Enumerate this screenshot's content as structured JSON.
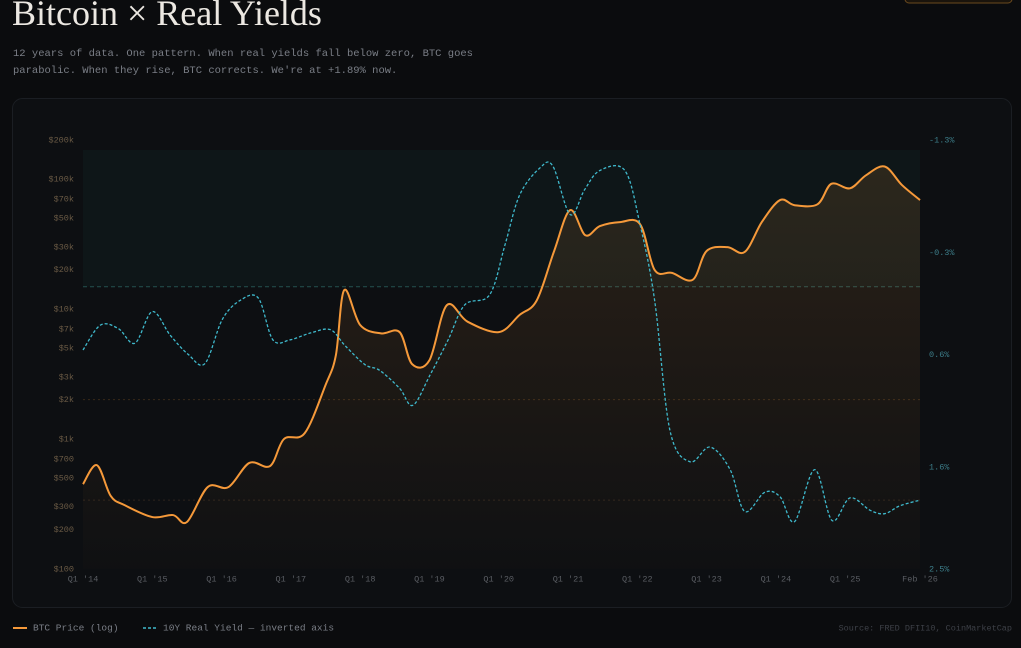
{
  "chart_data": {
    "type": "line",
    "title": "Bitcoin × Real Yields",
    "subtitle": "12 years of data. One pattern. When real yields fall below zero, BTC goes parabolic. When they rise, BTC corrects. We're at +1.89% now.",
    "source": "Source: FRED DFII10, CoinMarketCap",
    "xlim": [
      2014,
      2026.08
    ],
    "xticks": [
      {
        "value": 2014,
        "label": "Q1 '14"
      },
      {
        "value": 2015,
        "label": "Q1 '15"
      },
      {
        "value": 2016,
        "label": "Q1 '16"
      },
      {
        "value": 2017,
        "label": "Q1 '17"
      },
      {
        "value": 2018,
        "label": "Q1 '18"
      },
      {
        "value": 2019,
        "label": "Q1 '19"
      },
      {
        "value": 2020,
        "label": "Q1 '20"
      },
      {
        "value": 2021,
        "label": "Q1 '21"
      },
      {
        "value": 2022,
        "label": "Q1 '22"
      },
      {
        "value": 2023,
        "label": "Q1 '23"
      },
      {
        "value": 2024,
        "label": "Q1 '24"
      },
      {
        "value": 2025,
        "label": "Q1 '25"
      },
      {
        "value": 2026.08,
        "label": "Feb '26"
      }
    ],
    "ylog": true,
    "ylim": [
      100,
      200000
    ],
    "yticks": [
      {
        "value": 100,
        "label": "$100"
      },
      {
        "value": 200,
        "label": "$200"
      },
      {
        "value": 300,
        "label": "$300"
      },
      {
        "value": 500,
        "label": "$500"
      },
      {
        "value": 700,
        "label": "$700"
      },
      {
        "value": 1000,
        "label": "$1k"
      },
      {
        "value": 2000,
        "label": "$2k"
      },
      {
        "value": 3000,
        "label": "$3k"
      },
      {
        "value": 5000,
        "label": "$5k"
      },
      {
        "value": 7000,
        "label": "$7k"
      },
      {
        "value": 10000,
        "label": "$10k"
      },
      {
        "value": 20000,
        "label": "$20k"
      },
      {
        "value": 30000,
        "label": "$30k"
      },
      {
        "value": 50000,
        "label": "$50k"
      },
      {
        "value": 70000,
        "label": "$70k"
      },
      {
        "value": 100000,
        "label": "$100k"
      },
      {
        "value": 200000,
        "label": "$200k"
      }
    ],
    "y2_inverted": true,
    "y2lim": [
      -1.3,
      2.5
    ],
    "y2ticks": [
      {
        "value": -1.3,
        "label": "-1.3%"
      },
      {
        "value": -0.3,
        "label": "-0.3%"
      },
      {
        "value": 0.6,
        "label": "0.6%"
      },
      {
        "value": 1.6,
        "label": "1.6%"
      },
      {
        "value": 2.5,
        "label": "2.5%"
      }
    ],
    "reference_lines": [
      {
        "axis": "y2",
        "value": 0,
        "color": "#24504f"
      },
      {
        "axis": "y2",
        "value": 1.0,
        "color": "#3a2a18"
      },
      {
        "axis": "y2",
        "value": 1.89,
        "color": "#2e241c"
      }
    ],
    "series": [
      {
        "name": "BTC Price (log)",
        "color": "#f5993a",
        "dash": false,
        "x": [
          2014.0,
          2014.2,
          2014.4,
          2014.6,
          2015.0,
          2015.3,
          2015.5,
          2015.8,
          2016.1,
          2016.4,
          2016.7,
          2016.9,
          2017.2,
          2017.5,
          2017.65,
          2017.77,
          2018.0,
          2018.3,
          2018.57,
          2018.75,
          2019.0,
          2019.25,
          2019.55,
          2020.0,
          2020.3,
          2020.55,
          2020.8,
          2021.03,
          2021.25,
          2021.46,
          2021.75,
          2022.04,
          2022.25,
          2022.5,
          2022.8,
          2023.0,
          2023.3,
          2023.55,
          2023.8,
          2024.06,
          2024.27,
          2024.6,
          2024.8,
          2025.07,
          2025.3,
          2025.57,
          2025.82,
          2026.08
        ],
        "values": [
          450,
          630,
          365,
          310,
          251,
          260,
          230,
          427,
          427,
          655,
          620,
          1000,
          1110,
          2600,
          4430,
          14000,
          7540,
          6500,
          6650,
          3770,
          4040,
          10700,
          8000,
          6650,
          9000,
          11700,
          28000,
          57700,
          37000,
          43500,
          46700,
          45000,
          20000,
          19000,
          16800,
          28000,
          30000,
          27500,
          47000,
          69000,
          63000,
          64000,
          92000,
          85000,
          107000,
          125000,
          90000,
          69000
        ]
      },
      {
        "name": "10Y Real Yield — inverted axis",
        "color": "#3fb9cc",
        "dash": true,
        "axis": "y2",
        "x": [
          2014.0,
          2014.25,
          2014.51,
          2014.75,
          2015.0,
          2015.26,
          2015.52,
          2015.76,
          2016.01,
          2016.27,
          2016.53,
          2016.74,
          2016.99,
          2017.28,
          2017.57,
          2017.78,
          2018.07,
          2018.28,
          2018.57,
          2018.76,
          2019.01,
          2019.27,
          2019.51,
          2019.87,
          2020.09,
          2020.3,
          2020.59,
          2020.78,
          2021.03,
          2021.24,
          2021.46,
          2021.82,
          2022.04,
          2022.25,
          2022.47,
          2022.76,
          2023.05,
          2023.34,
          2023.55,
          2023.84,
          2024.06,
          2024.27,
          2024.56,
          2024.81,
          2025.07,
          2025.36,
          2025.57,
          2025.79,
          2026.08
        ],
        "values": [
          0.56,
          0.34,
          0.37,
          0.5,
          0.22,
          0.43,
          0.6,
          0.68,
          0.29,
          0.12,
          0.1,
          0.47,
          0.47,
          0.41,
          0.38,
          0.52,
          0.69,
          0.74,
          0.9,
          1.05,
          0.78,
          0.47,
          0.16,
          0.07,
          -0.37,
          -0.81,
          -1.05,
          -1.07,
          -0.64,
          -0.86,
          -1.03,
          -1.03,
          -0.55,
          0.12,
          1.27,
          1.55,
          1.42,
          1.62,
          1.99,
          1.82,
          1.86,
          2.08,
          1.62,
          2.07,
          1.87,
          1.98,
          2.01,
          1.94,
          1.89
        ]
      }
    ]
  }
}
